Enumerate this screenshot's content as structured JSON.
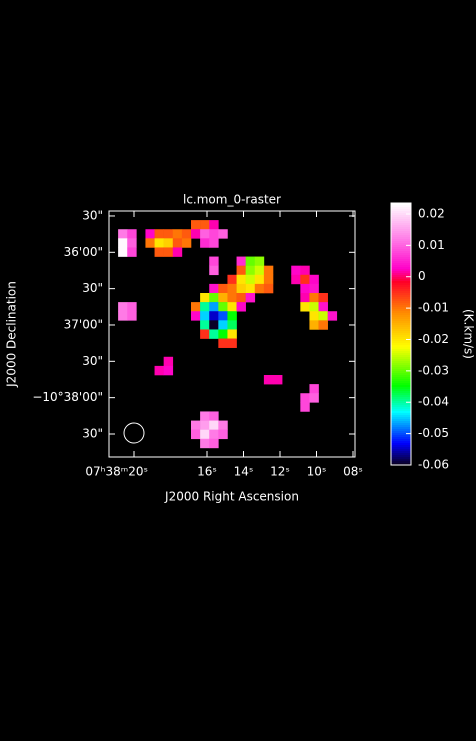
{
  "chart_data": {
    "type": "heatmap",
    "title": "lc.mom_0-raster",
    "x_label": "J2000 Right Ascension",
    "y_label": "J2000 Declination",
    "colorbar_label": "(K.km/s)",
    "xlim": [
      21.37,
      7.89
    ],
    "xticks": [
      {
        "value": 20,
        "label": "07ʰ38ᵐ20ˢ"
      },
      {
        "value": 16,
        "label": "16ˢ"
      },
      {
        "value": 14,
        "label": "14ˢ"
      },
      {
        "value": 12,
        "label": "12ˢ"
      },
      {
        "value": 10,
        "label": "10ˢ"
      },
      {
        "value": 8,
        "label": "08ˢ"
      }
    ],
    "ylim": [
      -229,
      -25.9
    ],
    "yticks": [
      {
        "value": -30,
        "label": "30\""
      },
      {
        "value": -60,
        "label": "36'00\""
      },
      {
        "value": -90,
        "label": "30\""
      },
      {
        "value": -120,
        "label": "37'00\""
      },
      {
        "value": -150,
        "label": "30\""
      },
      {
        "value": -180,
        "label": "−10°38'00\""
      },
      {
        "value": -210,
        "label": "30\""
      }
    ],
    "vlim": [
      -0.06,
      0.0235
    ],
    "vticks": [
      0.02,
      0.01,
      0,
      -0.01,
      -0.02,
      -0.03,
      -0.04,
      -0.05,
      -0.06
    ],
    "grid_size": 27,
    "cells": [
      [
        9,
        1,
        -0.008
      ],
      [
        10,
        1,
        -0.008
      ],
      [
        11,
        1,
        0.002
      ],
      [
        1,
        2,
        0.012
      ],
      [
        2,
        2,
        0.008
      ],
      [
        4,
        2,
        0.003
      ],
      [
        5,
        2,
        -0.008
      ],
      [
        6,
        2,
        -0.008
      ],
      [
        7,
        2,
        -0.01
      ],
      [
        8,
        2,
        -0.008
      ],
      [
        9,
        2,
        0.002
      ],
      [
        10,
        2,
        0.01
      ],
      [
        11,
        2,
        0.008
      ],
      [
        12,
        2,
        0.01
      ],
      [
        1,
        3,
        0.023
      ],
      [
        2,
        3,
        0.01
      ],
      [
        4,
        3,
        -0.01
      ],
      [
        5,
        3,
        -0.02
      ],
      [
        6,
        3,
        -0.018
      ],
      [
        7,
        3,
        -0.008
      ],
      [
        8,
        3,
        -0.01
      ],
      [
        10,
        3,
        0.006
      ],
      [
        11,
        3,
        0.008
      ],
      [
        1,
        4,
        0.023
      ],
      [
        2,
        4,
        0.008
      ],
      [
        5,
        4,
        -0.008
      ],
      [
        6,
        4,
        -0.008
      ],
      [
        7,
        4,
        0.002
      ],
      [
        11,
        5,
        0.008
      ],
      [
        14,
        5,
        0.006
      ],
      [
        15,
        5,
        -0.03
      ],
      [
        16,
        5,
        -0.028
      ],
      [
        11,
        6,
        0.01
      ],
      [
        14,
        6,
        -0.008
      ],
      [
        15,
        6,
        -0.028
      ],
      [
        16,
        6,
        -0.025
      ],
      [
        17,
        6,
        -0.01
      ],
      [
        20,
        6,
        0.003
      ],
      [
        21,
        6,
        0.002
      ],
      [
        13,
        7,
        -0.005
      ],
      [
        14,
        7,
        -0.02
      ],
      [
        15,
        7,
        -0.025
      ],
      [
        16,
        7,
        -0.02
      ],
      [
        17,
        7,
        -0.01
      ],
      [
        20,
        7,
        0.002
      ],
      [
        21,
        7,
        -0.005
      ],
      [
        22,
        7,
        0.003
      ],
      [
        11,
        8,
        0.004
      ],
      [
        12,
        8,
        -0.008
      ],
      [
        13,
        8,
        -0.01
      ],
      [
        14,
        8,
        -0.018
      ],
      [
        15,
        8,
        -0.02
      ],
      [
        16,
        8,
        -0.01
      ],
      [
        17,
        8,
        -0.008
      ],
      [
        21,
        8,
        0.003
      ],
      [
        22,
        8,
        0.004
      ],
      [
        10,
        9,
        -0.02
      ],
      [
        11,
        9,
        -0.03
      ],
      [
        12,
        9,
        -0.015
      ],
      [
        13,
        9,
        -0.01
      ],
      [
        14,
        9,
        -0.008
      ],
      [
        15,
        9,
        0.004
      ],
      [
        21,
        9,
        0.002
      ],
      [
        22,
        9,
        -0.01
      ],
      [
        23,
        9,
        -0.005
      ],
      [
        1,
        10,
        0.012
      ],
      [
        2,
        10,
        0.01
      ],
      [
        9,
        10,
        -0.01
      ],
      [
        10,
        10,
        -0.04
      ],
      [
        11,
        10,
        -0.047
      ],
      [
        12,
        10,
        -0.03
      ],
      [
        13,
        10,
        -0.02
      ],
      [
        14,
        10,
        0.003
      ],
      [
        21,
        10,
        -0.02
      ],
      [
        22,
        10,
        -0.025
      ],
      [
        23,
        10,
        0.004
      ],
      [
        1,
        11,
        0.012
      ],
      [
        2,
        11,
        0.01
      ],
      [
        9,
        11,
        0.003
      ],
      [
        10,
        11,
        -0.045
      ],
      [
        11,
        11,
        -0.055
      ],
      [
        12,
        11,
        -0.05
      ],
      [
        13,
        11,
        -0.035
      ],
      [
        22,
        11,
        -0.02
      ],
      [
        23,
        11,
        -0.025
      ],
      [
        24,
        11,
        0.004
      ],
      [
        10,
        12,
        -0.04
      ],
      [
        11,
        12,
        -0.06
      ],
      [
        12,
        12,
        -0.045
      ],
      [
        13,
        12,
        -0.038
      ],
      [
        22,
        12,
        -0.015
      ],
      [
        23,
        12,
        -0.01
      ],
      [
        10,
        13,
        -0.005
      ],
      [
        11,
        13,
        -0.04
      ],
      [
        12,
        13,
        -0.035
      ],
      [
        13,
        13,
        -0.02
      ],
      [
        12,
        14,
        -0.005
      ],
      [
        13,
        14,
        -0.005
      ],
      [
        6,
        16,
        0.002
      ],
      [
        5,
        17,
        0.002
      ],
      [
        6,
        17,
        0.003
      ],
      [
        17,
        18,
        0.002
      ],
      [
        18,
        18,
        0.002
      ],
      [
        22,
        19,
        0.008
      ],
      [
        21,
        20,
        0.008
      ],
      [
        22,
        20,
        0.01
      ],
      [
        21,
        21,
        0.008
      ],
      [
        10,
        22,
        0.012
      ],
      [
        11,
        22,
        0.01
      ],
      [
        9,
        23,
        0.012
      ],
      [
        10,
        23,
        0.015
      ],
      [
        11,
        23,
        0.02
      ],
      [
        12,
        23,
        0.012
      ],
      [
        9,
        24,
        0.01
      ],
      [
        10,
        24,
        0.02
      ],
      [
        11,
        24,
        0.012
      ],
      [
        12,
        24,
        0.01
      ],
      [
        10,
        25,
        0.012
      ],
      [
        11,
        25,
        0.01
      ]
    ]
  }
}
